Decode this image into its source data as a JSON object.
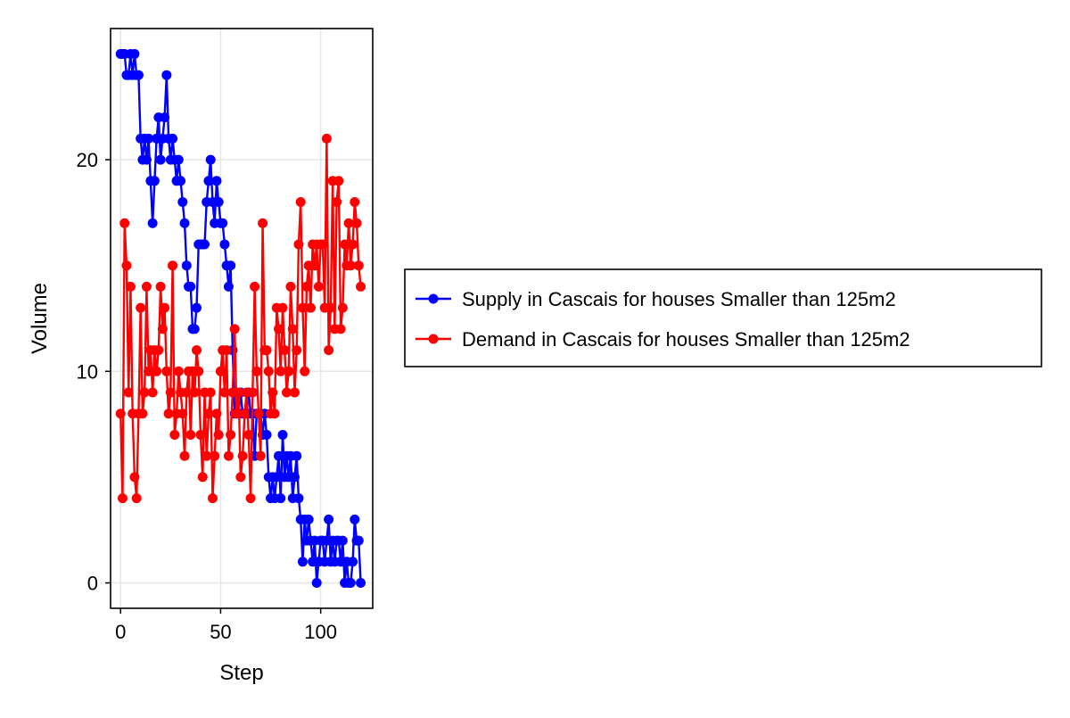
{
  "chart_data": {
    "type": "line",
    "title": "",
    "xlabel": "Step",
    "ylabel": "Volume",
    "xlim": [
      -5,
      126
    ],
    "ylim": [
      -1.2,
      26.2
    ],
    "xticks": [
      0,
      50,
      100
    ],
    "yticks": [
      0,
      10,
      20
    ],
    "grid": true,
    "legend_position": "right",
    "series": [
      {
        "name": "Supply in Cascais for houses Smaller than 125m2",
        "color": "#0000ff",
        "marker": "circle",
        "x": [
          0,
          1,
          2,
          3,
          4,
          5,
          6,
          7,
          8,
          9,
          10,
          11,
          12,
          13,
          14,
          15,
          16,
          17,
          18,
          19,
          20,
          21,
          22,
          23,
          24,
          25,
          26,
          27,
          28,
          29,
          30,
          31,
          32,
          33,
          34,
          35,
          36,
          37,
          38,
          39,
          40,
          41,
          42,
          43,
          44,
          45,
          46,
          47,
          48,
          49,
          50,
          51,
          52,
          53,
          54,
          55,
          56,
          57,
          58,
          59,
          60,
          61,
          62,
          63,
          64,
          65,
          66,
          67,
          68,
          69,
          70,
          71,
          72,
          73,
          74,
          75,
          76,
          77,
          78,
          79,
          80,
          81,
          82,
          83,
          84,
          85,
          86,
          87,
          88,
          89,
          90,
          91,
          92,
          93,
          94,
          95,
          96,
          97,
          98,
          99,
          100,
          101,
          102,
          103,
          104,
          105,
          106,
          107,
          108,
          109,
          110,
          111,
          112,
          113,
          114,
          115,
          116,
          117,
          118,
          119,
          120
        ],
        "y": [
          25,
          25,
          25,
          24,
          24,
          25,
          24,
          25,
          24,
          24,
          21,
          20,
          21,
          20,
          21,
          19,
          17,
          19,
          21,
          22,
          20,
          21,
          22,
          24,
          21,
          20,
          21,
          20,
          19,
          20,
          19,
          18,
          17,
          15,
          14,
          14,
          12,
          12,
          13,
          16,
          16,
          16,
          16,
          18,
          19,
          20,
          18,
          17,
          19,
          18,
          17,
          17,
          16,
          15,
          14,
          15,
          11,
          8,
          8,
          8,
          9,
          8,
          8,
          8,
          9,
          8,
          8,
          6,
          8,
          8,
          8,
          7,
          8,
          7,
          5,
          4,
          5,
          4,
          5,
          6,
          4,
          7,
          5,
          6,
          5,
          6,
          4,
          5,
          6,
          4,
          3,
          1,
          3,
          2,
          3,
          2,
          1,
          2,
          0,
          1,
          2,
          2,
          1,
          2,
          3,
          1,
          2,
          1,
          2,
          2,
          1,
          2,
          0,
          1,
          0,
          0,
          1,
          3,
          2,
          2,
          0
        ]
      },
      {
        "name": "Demand in Cascais for houses Smaller than 125m2",
        "color": "#ff0000",
        "marker": "circle",
        "x": [
          0,
          1,
          2,
          3,
          4,
          5,
          6,
          7,
          8,
          9,
          10,
          11,
          12,
          13,
          14,
          15,
          16,
          17,
          18,
          19,
          20,
          21,
          22,
          23,
          24,
          25,
          26,
          27,
          28,
          29,
          30,
          31,
          32,
          33,
          34,
          35,
          36,
          37,
          38,
          39,
          40,
          41,
          42,
          43,
          44,
          45,
          46,
          47,
          48,
          49,
          50,
          51,
          52,
          53,
          54,
          55,
          56,
          57,
          58,
          59,
          60,
          61,
          62,
          63,
          64,
          65,
          66,
          67,
          68,
          69,
          70,
          71,
          72,
          73,
          74,
          75,
          76,
          77,
          78,
          79,
          80,
          81,
          82,
          83,
          84,
          85,
          86,
          87,
          88,
          89,
          90,
          91,
          92,
          93,
          94,
          95,
          96,
          97,
          98,
          99,
          100,
          101,
          102,
          103,
          104,
          105,
          106,
          107,
          108,
          109,
          110,
          111,
          112,
          113,
          114,
          115,
          116,
          117,
          118,
          119,
          120
        ],
        "y": [
          8,
          4,
          17,
          15,
          9,
          14,
          8,
          5,
          4,
          8,
          13,
          8,
          9,
          14,
          10,
          11,
          9,
          11,
          10,
          11,
          14,
          12,
          13,
          10,
          8,
          9,
          15,
          7,
          8,
          10,
          9,
          8,
          6,
          9,
          10,
          7,
          10,
          9,
          11,
          10,
          7,
          5,
          9,
          6,
          8,
          9,
          4,
          6,
          8,
          7,
          10,
          11,
          9,
          11,
          6,
          7,
          9,
          12,
          8,
          9,
          5,
          6,
          8,
          9,
          7,
          4,
          9,
          14,
          10,
          8,
          6,
          17,
          11,
          11,
          10,
          8,
          9,
          8,
          13,
          12,
          10,
          13,
          11,
          9,
          10,
          14,
          12,
          9,
          11,
          16,
          18,
          13,
          10,
          14,
          15,
          13,
          16,
          15,
          16,
          14,
          16,
          16,
          13,
          21,
          11,
          13,
          19,
          12,
          18,
          19,
          12,
          13,
          16,
          15,
          17,
          15,
          16,
          18,
          17,
          15,
          14
        ]
      }
    ]
  }
}
